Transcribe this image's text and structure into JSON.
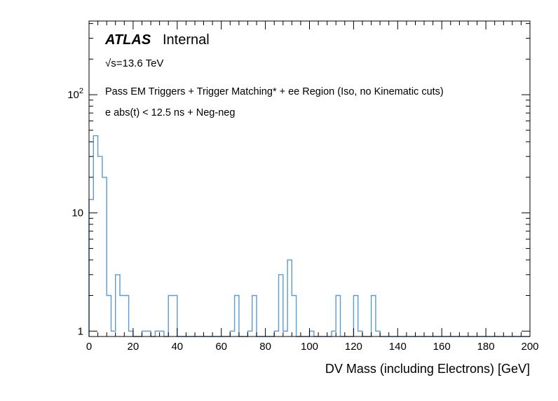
{
  "page": {
    "background_color": "#ffffff",
    "frame_color": "#000000"
  },
  "chart_data": {
    "type": "bar",
    "subtype": "step-histogram",
    "title": "",
    "xlabel": "DV Mass (including Electrons) [GeV]",
    "ylabel": "",
    "xlim": [
      0,
      200
    ],
    "ylog": true,
    "ylim": [
      0.9,
      420
    ],
    "grid": false,
    "legend": "none",
    "line_color": "#5a9bd5",
    "bin_width": 2,
    "bins": [
      [
        0,
        13
      ],
      [
        2,
        45
      ],
      [
        4,
        30
      ],
      [
        6,
        20
      ],
      [
        8,
        2
      ],
      [
        10,
        1
      ],
      [
        12,
        3
      ],
      [
        14,
        2
      ],
      [
        16,
        2
      ],
      [
        18,
        1
      ],
      [
        24,
        1
      ],
      [
        26,
        1
      ],
      [
        30,
        1
      ],
      [
        32,
        1
      ],
      [
        36,
        2
      ],
      [
        38,
        2
      ],
      [
        64,
        1
      ],
      [
        66,
        2
      ],
      [
        72,
        1
      ],
      [
        74,
        2
      ],
      [
        84,
        1
      ],
      [
        86,
        3
      ],
      [
        88,
        1
      ],
      [
        90,
        4
      ],
      [
        92,
        2
      ],
      [
        100,
        1
      ],
      [
        110,
        1
      ],
      [
        112,
        2
      ],
      [
        120,
        2
      ],
      [
        122,
        1
      ],
      [
        128,
        2
      ],
      [
        130,
        1
      ]
    ],
    "x_major_ticks": [
      0,
      20,
      40,
      60,
      80,
      100,
      120,
      140,
      160,
      180,
      200
    ],
    "x_minor_step": 4,
    "y_major_ticks": [
      {
        "value": 1,
        "label": "1"
      },
      {
        "value": 10,
        "label": "10"
      },
      {
        "value": 100,
        "label": "10",
        "exp": "2"
      }
    ],
    "annotations": {
      "atlas": "ATLAS",
      "internal": "Internal",
      "sqrt_s": "√s=13.6 TeV",
      "selection": "Pass EM Triggers + Trigger Matching* + ee Region (Iso, no Kinematic cuts)",
      "timing": "e abs(t) < 12.5 ns + Neg-neg"
    }
  }
}
